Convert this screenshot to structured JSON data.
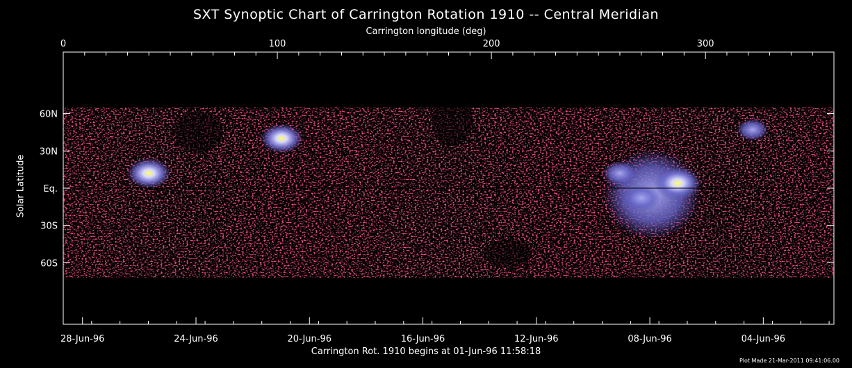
{
  "chart_data": {
    "type": "heatmap",
    "title": "SXT Synoptic Chart of Carrington Rotation 1910 -- Central Meridian",
    "top_axis": {
      "label": "Carrington longitude (deg)",
      "range": [
        0,
        360
      ],
      "ticks": [
        {
          "value": 0,
          "label": "0"
        },
        {
          "value": 100,
          "label": "100"
        },
        {
          "value": 200,
          "label": "200"
        },
        {
          "value": 300,
          "label": "300"
        }
      ]
    },
    "left_axis": {
      "label": "Solar Latitude",
      "range": [
        -90,
        90
      ],
      "ticks": [
        {
          "value": 60,
          "label": "60N"
        },
        {
          "value": 30,
          "label": "30N"
        },
        {
          "value": 0,
          "label": "Eq."
        },
        {
          "value": -30,
          "label": "30S"
        },
        {
          "value": -60,
          "label": "60S"
        }
      ]
    },
    "bottom_axis": {
      "label": "Carrington Rot. 1910 begins at 01-Jun-96 11:58:18",
      "ticks": [
        {
          "lon": 9,
          "label": "28-Jun-96"
        },
        {
          "lon": 62,
          "label": "24-Jun-96"
        },
        {
          "lon": 115,
          "label": "20-Jun-96"
        },
        {
          "lon": 168,
          "label": "16-Jun-96"
        },
        {
          "lon": 221,
          "label": "12-Jun-96"
        },
        {
          "lon": 274,
          "label": "08-Jun-96"
        },
        {
          "lon": 327,
          "label": "04-Jun-96"
        }
      ]
    },
    "bright_regions": [
      {
        "lon": 40,
        "lat": 12,
        "intensity": 0.9
      },
      {
        "lon": 102,
        "lat": 40,
        "intensity": 0.85
      },
      {
        "lon": 260,
        "lat": 12,
        "intensity": 0.6
      },
      {
        "lon": 270,
        "lat": -8,
        "intensity": 0.7
      },
      {
        "lon": 287,
        "lat": 4,
        "intensity": 1.0
      },
      {
        "lon": 322,
        "lat": 47,
        "intensity": 0.5
      }
    ],
    "grid": false
  },
  "footer": {
    "plot_made": "Plot Made 21-Mar-2011 09:41:06.00"
  }
}
